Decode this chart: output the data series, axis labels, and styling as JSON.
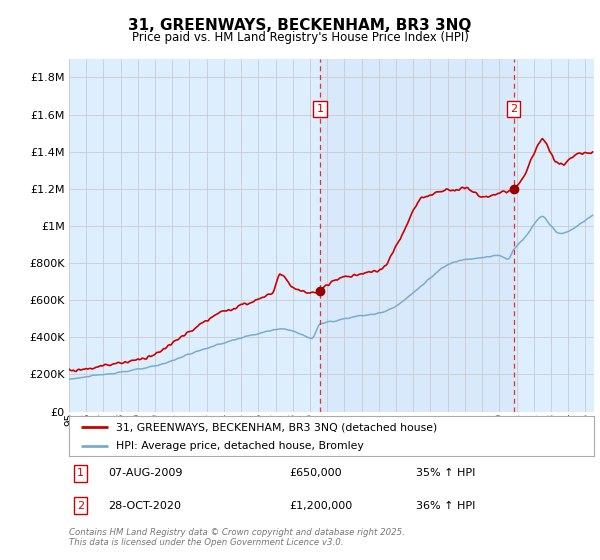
{
  "title": "31, GREENWAYS, BECKENHAM, BR3 3NQ",
  "subtitle": "Price paid vs. HM Land Registry's House Price Index (HPI)",
  "line1_label": "31, GREENWAYS, BECKENHAM, BR3 3NQ (detached house)",
  "line2_label": "HPI: Average price, detached house, Bromley",
  "line1_color": "#cc0000",
  "line2_color": "#7aadcc",
  "background_color": "#ffffff",
  "plot_bg_color": "#ddeeff",
  "grid_color": "#cccccc",
  "annotation1": {
    "num": "1",
    "date": "07-AUG-2009",
    "price": "£650,000",
    "hpi": "35% ↑ HPI"
  },
  "annotation2": {
    "num": "2",
    "date": "28-OCT-2020",
    "price": "£1,200,000",
    "hpi": "36% ↑ HPI"
  },
  "vline1_year": 2009.58,
  "vline2_year": 2020.83,
  "dot1_year": 2009.58,
  "dot1_value": 650000,
  "dot2_year": 2020.83,
  "dot2_value": 1200000,
  "ylim": [
    0,
    1900000
  ],
  "yticks": [
    0,
    200000,
    400000,
    600000,
    800000,
    1000000,
    1200000,
    1400000,
    1600000,
    1800000
  ],
  "ytick_labels": [
    "£0",
    "£200K",
    "£400K",
    "£600K",
    "£800K",
    "£1M",
    "£1.2M",
    "£1.4M",
    "£1.6M",
    "£1.8M"
  ],
  "footnote": "Contains HM Land Registry data © Crown copyright and database right 2025.\nThis data is licensed under the Open Government Licence v3.0.",
  "shade_start": 2009.58,
  "shade_end": 2020.83,
  "xlim_start": 1995.0,
  "xlim_end": 2025.5
}
